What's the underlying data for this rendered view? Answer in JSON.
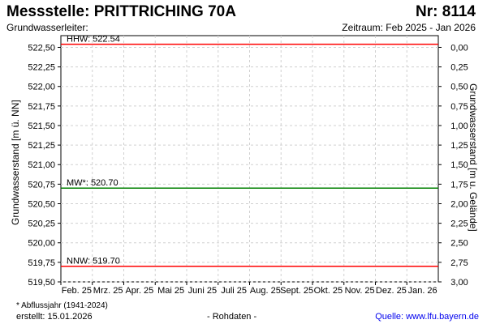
{
  "header": {
    "title": "Messstelle: PRITTRICHING 70A",
    "nr": "Nr: 8114",
    "aquifer": "Grundwasserleiter:",
    "period": "Zeitraum: Feb 2025 - Jan 2026"
  },
  "chart_data": {
    "type": "line",
    "ylabel": "Grundwasserstand [m ü. NN]",
    "y2label": "Grundwasserstand [m u. Gelände]",
    "ylim": [
      519.5,
      522.65
    ],
    "y_ticks": [
      "522,50",
      "522,25",
      "522,00",
      "521,75",
      "521,50",
      "521,25",
      "521,00",
      "520,75",
      "520,50",
      "520,25",
      "520,00",
      "519,75",
      "519,50"
    ],
    "y2_ticks": [
      "0,00",
      "0,25",
      "0,50",
      "0,75",
      "1,00",
      "1,25",
      "1,50",
      "1,75",
      "2,00",
      "2,25",
      "2,50",
      "2,75",
      "3,00"
    ],
    "x_ticks": [
      "Feb. 25",
      "Mrz. 25",
      "Apr. 25",
      "Mai 25",
      "Juni 25",
      "Juli 25",
      "Aug. 25",
      "Sept. 25",
      "Okt. 25",
      "Nov. 25",
      "Dez. 25",
      "Jan. 26"
    ],
    "grid": true,
    "reference_lines": [
      {
        "label": "HHW: 522.54",
        "value": 522.54,
        "color": "#ff0000"
      },
      {
        "label": "MW*: 520.70",
        "value": 520.7,
        "color": "#008000"
      },
      {
        "label": "NNW: 519.70",
        "value": 519.7,
        "color": "#ff0000"
      }
    ]
  },
  "footer": {
    "footnote": "* Abflussjahr (1941-2024)",
    "created": "erstellt:  15.01.2026",
    "rawdata": "- Rohdaten -",
    "source": "Quelle: www.lfu.bayern.de"
  }
}
